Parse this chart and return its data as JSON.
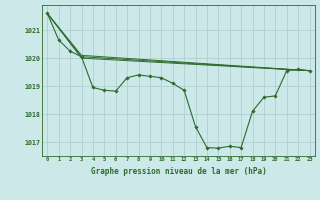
{
  "background_color": "#cce8e8",
  "grid_color": "#aacccc",
  "line_color": "#2d6b2d",
  "title": "Graphe pression niveau de la mer (hPa)",
  "xlim": [
    -0.5,
    23.5
  ],
  "ylim": [
    1016.5,
    1021.9
  ],
  "yticks": [
    1017,
    1018,
    1019,
    1020,
    1021
  ],
  "xticks": [
    0,
    1,
    2,
    3,
    4,
    5,
    6,
    7,
    8,
    9,
    10,
    11,
    12,
    13,
    14,
    15,
    16,
    17,
    18,
    19,
    20,
    21,
    22,
    23
  ],
  "series_main": {
    "x": [
      0,
      1,
      2,
      3,
      4,
      5,
      6,
      7,
      8,
      9,
      10,
      11,
      12,
      13,
      14,
      15,
      16,
      17,
      18,
      19,
      20,
      21,
      22,
      23
    ],
    "y": [
      1021.6,
      1020.65,
      1020.25,
      1020.05,
      1018.95,
      1018.85,
      1018.82,
      1019.3,
      1019.4,
      1019.35,
      1019.3,
      1019.1,
      1018.85,
      1017.55,
      1016.8,
      1016.78,
      1016.85,
      1016.8,
      1018.1,
      1018.6,
      1018.65,
      1019.55,
      1019.6,
      1019.55
    ]
  },
  "trend_lines": [
    {
      "x": [
        0,
        3,
        23
      ],
      "y": [
        1021.6,
        1020.05,
        1019.55
      ]
    },
    {
      "x": [
        0,
        3,
        23
      ],
      "y": [
        1021.6,
        1020.1,
        1019.55
      ]
    },
    {
      "x": [
        0,
        3,
        23
      ],
      "y": [
        1021.6,
        1020.0,
        1019.55
      ]
    }
  ]
}
